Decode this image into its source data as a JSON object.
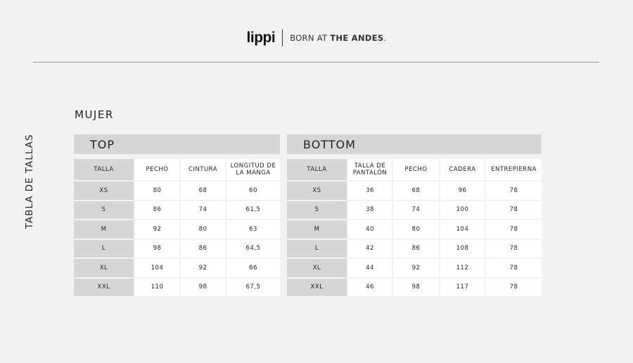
{
  "header": {
    "logo": "lippi",
    "tagline_light": "BORN AT ",
    "tagline_bold": "THE ANDES",
    "tagline_end": "."
  },
  "side_title": "TABLA DE TALLAS",
  "section": "MUJER",
  "top": {
    "title": "TOP",
    "columns": [
      "TALLA",
      "PECHO",
      "CINTURA",
      "LONGITUD DE LA MANGA"
    ],
    "rows": [
      [
        "XS",
        "80",
        "68",
        "60"
      ],
      [
        "S",
        "86",
        "74",
        "61,5"
      ],
      [
        "M",
        "92",
        "80",
        "63"
      ],
      [
        "L",
        "98",
        "86",
        "64,5"
      ],
      [
        "XL",
        "104",
        "92",
        "66"
      ],
      [
        "XXL",
        "110",
        "98",
        "67,5"
      ]
    ]
  },
  "bottom": {
    "title": "BOTTOM",
    "columns": [
      "TALLA",
      "TALLA DE PANTALÓN",
      "PECHO",
      "CADERA",
      "ENTREPIERNA"
    ],
    "rows": [
      [
        "XS",
        "36",
        "68",
        "96",
        "78"
      ],
      [
        "S",
        "38",
        "74",
        "100",
        "78"
      ],
      [
        "M",
        "40",
        "80",
        "104",
        "78"
      ],
      [
        "L",
        "42",
        "86",
        "108",
        "78"
      ],
      [
        "XL",
        "44",
        "92",
        "112",
        "78"
      ],
      [
        "XXL",
        "46",
        "98",
        "117",
        "78"
      ]
    ]
  }
}
